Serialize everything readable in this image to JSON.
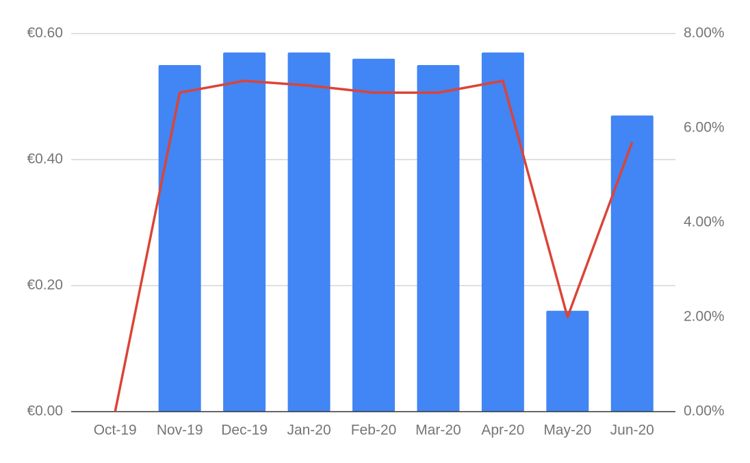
{
  "chart_data": {
    "type": "bar",
    "categories": [
      "Oct-19",
      "Nov-19",
      "Dec-19",
      "Jan-20",
      "Feb-20",
      "Mar-20",
      "Apr-20",
      "May-20",
      "Jun-20"
    ],
    "series": [
      {
        "type": "bar",
        "color": "#4285f4",
        "values": [
          0,
          0.55,
          0.57,
          0.57,
          0.56,
          0.55,
          0.57,
          0.16,
          0.47
        ]
      },
      {
        "type": "line",
        "axis": "y2",
        "color": "#db4437",
        "values": [
          0,
          6.75,
          7.0,
          6.9,
          6.75,
          6.75,
          7.0,
          2.0,
          5.7
        ]
      }
    ],
    "ylim": [
      0,
      0.6
    ],
    "yticks": [
      {
        "value": 0,
        "label": "€0.00"
      },
      {
        "value": 0.2,
        "label": "€0.20"
      },
      {
        "value": 0.4,
        "label": "€0.40"
      },
      {
        "value": 0.6,
        "label": "€0.60"
      }
    ],
    "y2lim": [
      0,
      8
    ],
    "y2ticks": [
      {
        "value": 0,
        "label": "0.00%"
      },
      {
        "value": 2,
        "label": "2.00%"
      },
      {
        "value": 4,
        "label": "4.00%"
      },
      {
        "value": 6,
        "label": "6.00%"
      },
      {
        "value": 8,
        "label": "8.00%"
      }
    ],
    "grid": true
  }
}
